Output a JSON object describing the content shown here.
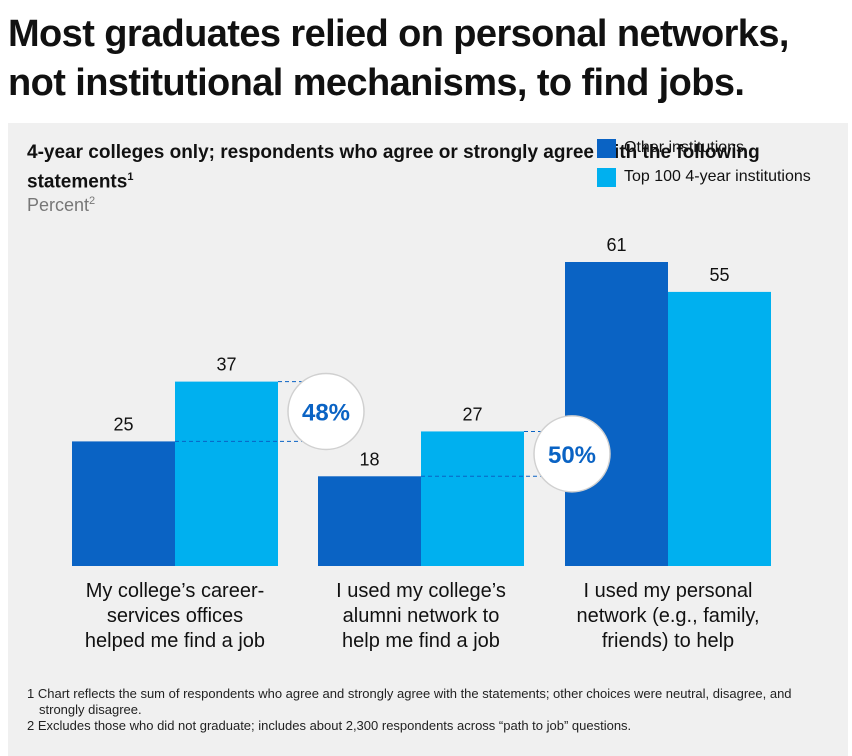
{
  "headline": "Most graduates relied on personal networks, not institutional mechanisms, to find jobs.",
  "subtitle": "4-year colleges only; respondents who agree or strongly agree with the following statements",
  "subtitle_sup": "1",
  "unit_label": "Percent",
  "unit_sup": "2",
  "colors": {
    "other": "#0a63c4",
    "top100": "#00b0ef",
    "callout_text": "#0a63c4",
    "panel": "#f0f0f0"
  },
  "chart_data": {
    "type": "bar",
    "categories": [
      "My college’s career-services offices helped me find a job",
      "I used my college’s alumni network to help me find a job",
      "I used my personal network (e.g., family, friends) to help"
    ],
    "category_lines": [
      [
        "My college’s career-",
        "services offices",
        "helped me find a job"
      ],
      [
        "I used my college’s",
        "alumni network to",
        "help me find a job"
      ],
      [
        "I used my personal",
        "network (e.g., family,",
        "friends) to help"
      ]
    ],
    "series": [
      {
        "name": "Other institutions",
        "values": [
          25,
          18,
          61
        ]
      },
      {
        "name": "Top 100 4-year institutions",
        "values": [
          37,
          27,
          55
        ]
      }
    ],
    "ylim": [
      0,
      61
    ],
    "callouts": [
      {
        "category_index": 0,
        "text": "48%"
      },
      {
        "category_index": 1,
        "text": "50%"
      }
    ]
  },
  "footnotes": [
    "1 Chart reflects the sum of respondents who agree and strongly agree with the statements; other choices were neutral, disagree, and strongly disagree.",
    "2 Excludes those who did not graduate; includes about 2,300 respondents across “path to job” questions."
  ]
}
